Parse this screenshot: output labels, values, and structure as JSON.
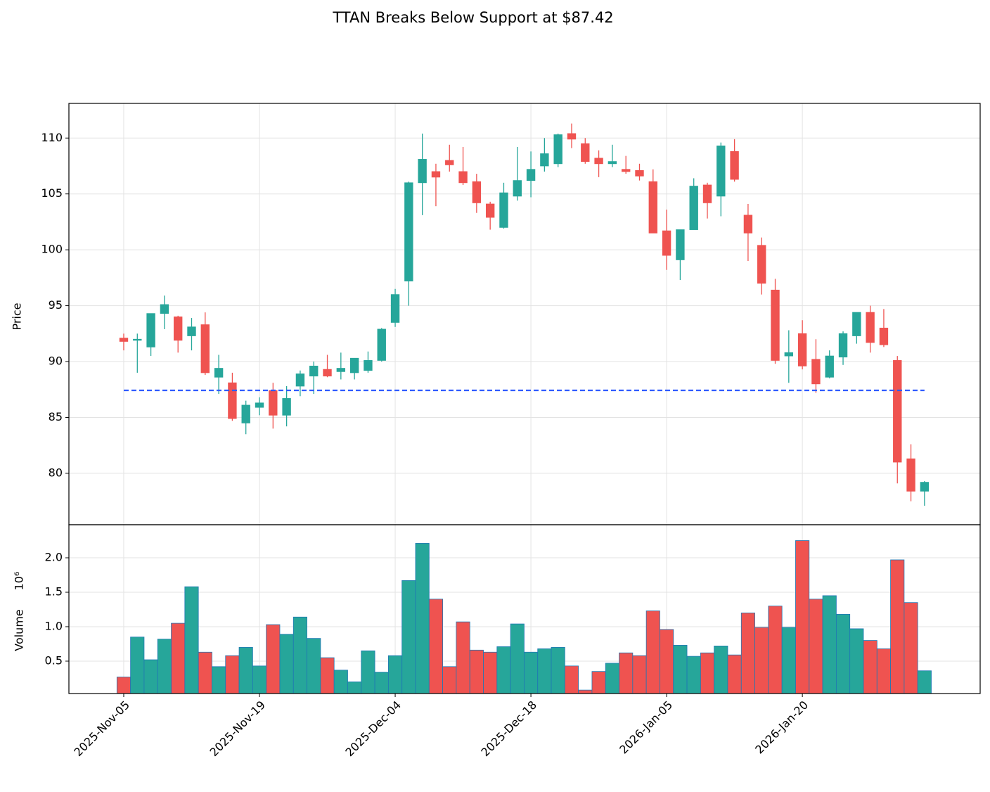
{
  "chart_data": {
    "type": "candlestick",
    "title": "TTAN Breaks Below Support at $87.42",
    "ylabel": "Price",
    "volume_label": "Volume",
    "volume_scale": "10⁶",
    "categories": [
      "2025-Nov-05",
      null,
      null,
      null,
      null,
      null,
      null,
      null,
      null,
      null,
      "2025-Nov-19",
      null,
      null,
      null,
      null,
      null,
      null,
      null,
      null,
      null,
      "2025-Dec-04",
      null,
      null,
      null,
      null,
      null,
      null,
      null,
      null,
      null,
      "2025-Dec-18",
      null,
      null,
      null,
      null,
      null,
      null,
      null,
      null,
      null,
      "2026-Jan-05",
      null,
      null,
      null,
      null,
      null,
      null,
      null,
      null,
      null,
      "2026-Jan-20",
      null,
      null,
      null,
      null,
      null,
      null,
      null,
      null,
      null
    ],
    "open": [
      92.1,
      91.9,
      91.3,
      94.3,
      94.0,
      92.3,
      93.3,
      88.6,
      88.1,
      84.5,
      85.9,
      87.4,
      85.2,
      87.8,
      88.7,
      89.3,
      89.1,
      89.0,
      89.2,
      90.1,
      93.5,
      97.2,
      106.0,
      107.0,
      108.0,
      107.0,
      106.1,
      104.1,
      102.0,
      104.8,
      106.2,
      107.5,
      107.7,
      110.4,
      109.5,
      108.2,
      107.7,
      107.2,
      107.1,
      106.1,
      101.7,
      99.1,
      101.8,
      105.8,
      104.8,
      108.8,
      103.1,
      100.4,
      96.4,
      90.5,
      92.5,
      90.2,
      88.6,
      90.4,
      92.3,
      94.4,
      93.0,
      90.1,
      81.3,
      78.4
    ],
    "high": [
      92.5,
      92.5,
      94.3,
      95.9,
      94.1,
      93.9,
      94.4,
      90.6,
      89.0,
      86.5,
      86.8,
      88.1,
      87.8,
      89.2,
      90.0,
      90.6,
      90.8,
      90.3,
      90.9,
      93.0,
      96.5,
      106.1,
      110.4,
      107.7,
      109.4,
      109.2,
      106.8,
      104.3,
      106.0,
      109.2,
      108.8,
      110.0,
      110.4,
      111.3,
      110.0,
      108.9,
      109.4,
      108.4,
      107.7,
      107.2,
      103.6,
      101.8,
      106.4,
      106.0,
      109.6,
      109.9,
      104.1,
      101.1,
      97.4,
      92.8,
      93.7,
      92.0,
      91.0,
      92.7,
      94.4,
      95.0,
      94.7,
      90.5,
      82.6,
      79.3
    ],
    "low": [
      91.0,
      89.0,
      90.5,
      92.9,
      90.8,
      91.0,
      88.8,
      87.1,
      84.7,
      83.5,
      85.2,
      84.0,
      84.2,
      86.9,
      87.1,
      88.6,
      88.4,
      88.4,
      89.0,
      90.0,
      93.1,
      95.0,
      103.1,
      103.9,
      107.0,
      105.8,
      103.3,
      101.8,
      101.9,
      104.4,
      104.7,
      107.0,
      107.4,
      109.1,
      107.7,
      106.5,
      107.4,
      106.8,
      106.2,
      101.5,
      98.2,
      97.3,
      101.8,
      102.8,
      103.0,
      106.1,
      99.0,
      96.0,
      89.8,
      88.1,
      89.3,
      87.2,
      88.5,
      89.7,
      91.6,
      90.8,
      91.3,
      79.1,
      77.5,
      77.1
    ],
    "close": [
      91.8,
      92.0,
      94.3,
      95.1,
      91.9,
      93.1,
      89.0,
      89.4,
      84.9,
      86.1,
      86.3,
      85.2,
      86.7,
      88.9,
      89.6,
      88.7,
      89.4,
      90.3,
      90.1,
      92.9,
      96.0,
      106.0,
      108.1,
      106.5,
      107.6,
      106.0,
      104.2,
      102.9,
      105.1,
      106.2,
      107.2,
      108.6,
      110.3,
      109.9,
      107.9,
      107.7,
      107.9,
      107.0,
      106.6,
      101.5,
      99.5,
      101.8,
      105.7,
      104.2,
      109.3,
      106.3,
      101.5,
      97.0,
      90.1,
      90.8,
      89.6,
      88.0,
      90.5,
      92.5,
      94.4,
      91.7,
      91.5,
      81.0,
      78.4,
      79.2
    ],
    "volume": [
      0.27,
      0.85,
      0.52,
      0.82,
      1.05,
      1.58,
      0.63,
      0.42,
      0.58,
      0.7,
      0.43,
      1.03,
      0.89,
      1.14,
      0.83,
      0.55,
      0.37,
      0.2,
      0.65,
      0.34,
      0.58,
      1.67,
      2.21,
      1.4,
      0.42,
      1.07,
      0.66,
      0.63,
      0.71,
      1.04,
      0.63,
      0.68,
      0.7,
      0.43,
      0.08,
      0.35,
      0.47,
      0.62,
      0.58,
      1.23,
      0.96,
      0.73,
      0.57,
      0.62,
      0.72,
      0.59,
      1.2,
      0.99,
      1.3,
      0.99,
      2.25,
      1.4,
      1.45,
      1.18,
      0.97,
      0.8,
      0.68,
      1.97,
      1.35,
      0.36
    ],
    "up_color": "#26a69a",
    "down_color": "#ef5350",
    "volume_edge_color": "#1f77b4",
    "support": 87.42,
    "support_color": "#2f5bff",
    "xlim": [
      -4.04,
      63.1
    ],
    "ylim": [
      75.4,
      113.1
    ],
    "yticks": [
      80,
      85,
      90,
      95,
      100,
      105,
      110
    ],
    "volume_ylim": [
      0.03,
      2.48
    ],
    "volume_yticks": [
      0.5,
      {
        "value": 1.0,
        "label": "1.0"
      },
      1.5,
      {
        "value": 2.0,
        "label": "2.0"
      }
    ],
    "grid": true
  }
}
